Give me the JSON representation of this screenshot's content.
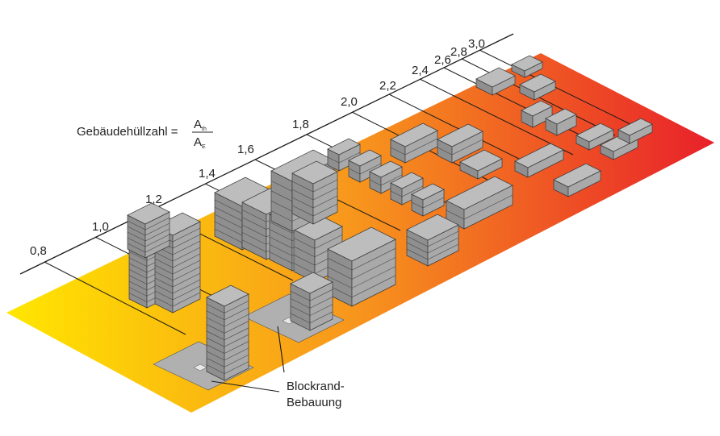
{
  "formula": {
    "label": "Gebäudehüllzahl =",
    "numerator": "A",
    "numerator_sub": "th",
    "denominator": "A",
    "denominator_sub": "E"
  },
  "scale_ticks": [
    "0,8",
    "1,0",
    "1,2",
    "1,4",
    "1,6",
    "1,8",
    "2,0",
    "2,2",
    "2,4",
    "2,6",
    "2,8",
    "3,0"
  ],
  "annotation": {
    "line1": "Blockrand-",
    "line2": "Bebauung"
  },
  "colors": {
    "gradient_start": "#ffe600",
    "gradient_mid": "#f7941d",
    "gradient_end": "#e8202a",
    "building_top": "#bdbdbd",
    "building_left": "#8f8f8f",
    "building_right": "#a9a9a9",
    "courtyard": "#b0b0b0",
    "line": "#1a1a1a"
  }
}
